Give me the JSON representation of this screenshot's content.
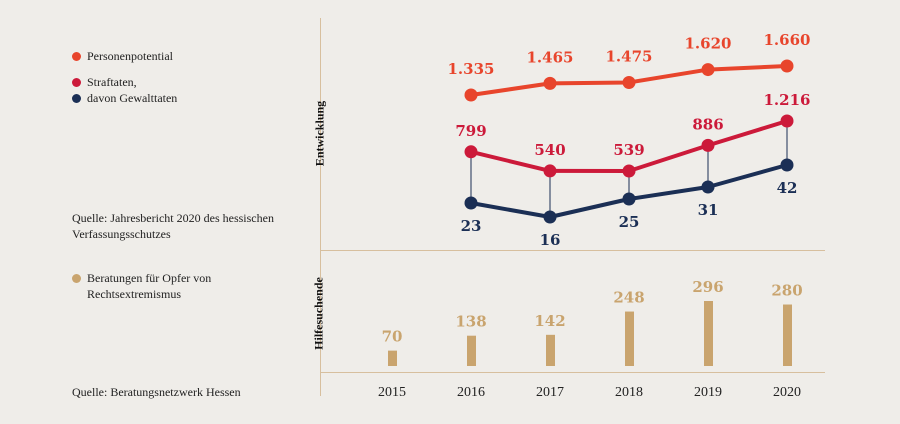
{
  "sections": {
    "top_label": "Entwicklung",
    "bottom_label": "Hilfesuchende"
  },
  "legend": {
    "personen": "Personenpotential",
    "straftaten_1": "Straftaten,",
    "straftaten_2": "davon Gewalttaten",
    "beratungen_1": "Beratungen für Opfer von",
    "beratungen_2": "Rechtsextremismus"
  },
  "sources": {
    "top_1": "Quelle: Jahresbericht 2020 des hessischen",
    "top_2": "Verfassungsschutzes",
    "bottom": "Quelle: Beratungsnetzwerk Hessen"
  },
  "colors": {
    "personen": "#e8452c",
    "straftaten": "#cc1a3a",
    "gewalttaten": "#1b2f55",
    "beratungen": "#c9a46e",
    "connector": "#1b2f55"
  },
  "chart_data": [
    {
      "type": "line",
      "categories": [
        "2016",
        "2017",
        "2018",
        "2019",
        "2020"
      ],
      "series": [
        {
          "name": "Personenpotential",
          "values": [
            1335,
            1465,
            1475,
            1620,
            1660
          ],
          "labels": [
            "1.335",
            "1.465",
            "1.475",
            "1.620",
            "1.660"
          ]
        },
        {
          "name": "Straftaten",
          "values": [
            799,
            540,
            539,
            886,
            1216
          ],
          "labels": [
            "799",
            "540",
            "539",
            "886",
            "1.216"
          ]
        },
        {
          "name": "davon Gewalttaten",
          "values": [
            23,
            16,
            25,
            31,
            42
          ],
          "labels": [
            "23",
            "16",
            "25",
            "31",
            "42"
          ]
        }
      ]
    },
    {
      "type": "bar",
      "categories": [
        "2015",
        "2016",
        "2017",
        "2018",
        "2019",
        "2020"
      ],
      "series": [
        {
          "name": "Beratungen für Opfer von Rechtsextremismus",
          "values": [
            70,
            138,
            142,
            248,
            296,
            280
          ]
        }
      ]
    }
  ]
}
